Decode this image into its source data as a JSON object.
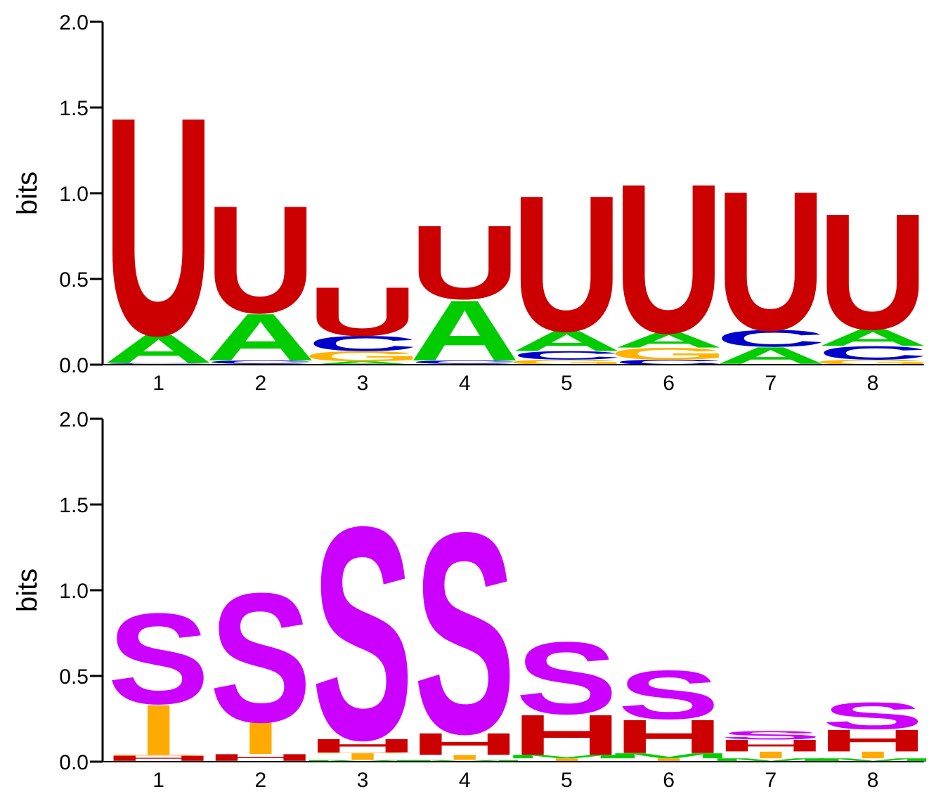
{
  "colors": {
    "U": "#cc0000",
    "A": "#00cc00",
    "C": "#0000cc",
    "G": "#ffb300",
    "S": "#cc00ff",
    "H": "#cc0000",
    "I": "#ffaa00",
    "M": "#00cc00",
    "B": "#ff8800"
  },
  "chart_data": [
    {
      "type": "sequence-logo",
      "ylabel": "bits",
      "ylim": [
        0,
        2.0
      ],
      "yticks": [
        "0.0",
        "0.5",
        "1.0",
        "1.5",
        "2.0"
      ],
      "xticks": [
        "1",
        "2",
        "3",
        "4",
        "5",
        "6",
        "7",
        "8"
      ],
      "positions": [
        [
          {
            "letter": "G",
            "bits": 0.005
          },
          {
            "letter": "C",
            "bits": 0.005
          },
          {
            "letter": "A",
            "bits": 0.17
          },
          {
            "letter": "U",
            "bits": 1.3
          }
        ],
        [
          {
            "letter": "G",
            "bits": 0.005
          },
          {
            "letter": "C",
            "bits": 0.02
          },
          {
            "letter": "A",
            "bits": 0.28
          },
          {
            "letter": "U",
            "bits": 0.64
          }
        ],
        [
          {
            "letter": "A",
            "bits": 0.02
          },
          {
            "letter": "G",
            "bits": 0.06
          },
          {
            "letter": "C",
            "bits": 0.09
          },
          {
            "letter": "U",
            "bits": 0.29
          }
        ],
        [
          {
            "letter": "G",
            "bits": 0.005
          },
          {
            "letter": "C",
            "bits": 0.02
          },
          {
            "letter": "A",
            "bits": 0.36
          },
          {
            "letter": "U",
            "bits": 0.44
          }
        ],
        [
          {
            "letter": "G",
            "bits": 0.03
          },
          {
            "letter": "C",
            "bits": 0.05
          },
          {
            "letter": "A",
            "bits": 0.12
          },
          {
            "letter": "U",
            "bits": 0.81
          }
        ],
        [
          {
            "letter": "C",
            "bits": 0.03
          },
          {
            "letter": "G",
            "bits": 0.07
          },
          {
            "letter": "A",
            "bits": 0.09
          },
          {
            "letter": "U",
            "bits": 0.89
          }
        ],
        [
          {
            "letter": "G",
            "bits": 0.005
          },
          {
            "letter": "A",
            "bits": 0.1
          },
          {
            "letter": "C",
            "bits": 0.1
          },
          {
            "letter": "U",
            "bits": 0.83
          }
        ],
        [
          {
            "letter": "G",
            "bits": 0.03
          },
          {
            "letter": "C",
            "bits": 0.08
          },
          {
            "letter": "A",
            "bits": 0.1
          },
          {
            "letter": "U",
            "bits": 0.69
          }
        ]
      ]
    },
    {
      "type": "sequence-logo",
      "ylabel": "bits",
      "ylim": [
        0,
        2.0
      ],
      "yticks": [
        "0.0",
        "0.5",
        "1.0",
        "1.5",
        "2.0"
      ],
      "xticks": [
        "1",
        "2",
        "3",
        "4",
        "5",
        "6",
        "7",
        "8"
      ],
      "positions": [
        [
          {
            "letter": "M",
            "bits": 0.005
          },
          {
            "letter": "H",
            "bits": 0.03
          },
          {
            "letter": "B",
            "bits": 0.005
          },
          {
            "letter": "I",
            "bits": 0.3
          },
          {
            "letter": "S",
            "bits": 0.54
          }
        ],
        [
          {
            "letter": "M",
            "bits": 0.005
          },
          {
            "letter": "H",
            "bits": 0.04
          },
          {
            "letter": "I",
            "bits": 0.19
          },
          {
            "letter": "S",
            "bits": 0.77
          }
        ],
        [
          {
            "letter": "M",
            "bits": 0.01
          },
          {
            "letter": "I",
            "bits": 0.04
          },
          {
            "letter": "B",
            "bits": 0.005
          },
          {
            "letter": "H",
            "bits": 0.08
          },
          {
            "letter": "S",
            "bits": 1.27
          }
        ],
        [
          {
            "letter": "M",
            "bits": 0.01
          },
          {
            "letter": "I",
            "bits": 0.03
          },
          {
            "letter": "H",
            "bits": 0.13
          },
          {
            "letter": "S",
            "bits": 1.2
          }
        ],
        [
          {
            "letter": "I",
            "bits": 0.02
          },
          {
            "letter": "M",
            "bits": 0.02
          },
          {
            "letter": "H",
            "bits": 0.24
          },
          {
            "letter": "S",
            "bits": 0.43
          }
        ],
        [
          {
            "letter": "I",
            "bits": 0.02
          },
          {
            "letter": "M",
            "bits": 0.03
          },
          {
            "letter": "H",
            "bits": 0.2
          },
          {
            "letter": "S",
            "bits": 0.29
          }
        ],
        [
          {
            "letter": "M",
            "bits": 0.02
          },
          {
            "letter": "I",
            "bits": 0.04
          },
          {
            "letter": "H",
            "bits": 0.07
          },
          {
            "letter": "S",
            "bits": 0.05
          }
        ],
        [
          {
            "letter": "M",
            "bits": 0.02
          },
          {
            "letter": "I",
            "bits": 0.04
          },
          {
            "letter": "H",
            "bits": 0.13
          },
          {
            "letter": "S",
            "bits": 0.16
          }
        ]
      ]
    }
  ]
}
